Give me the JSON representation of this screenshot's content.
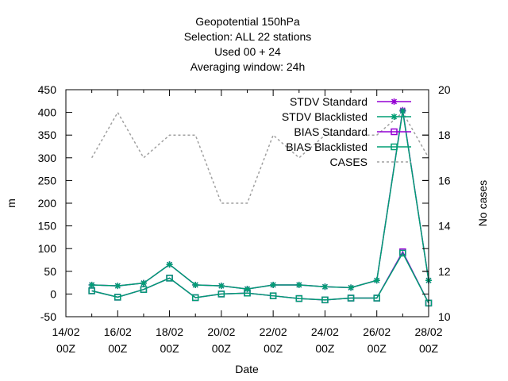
{
  "chart_data": {
    "type": "line",
    "title_lines": [
      "Geopotential 150hPa",
      "Selection: ALL      22 stations",
      "Used  00  + 24",
      "Averaging window: 24h"
    ],
    "xlabel": "Date",
    "ylabel": "m",
    "y2label": "No cases",
    "x_ticks": [
      {
        "line1": "14/02",
        "line2": "00Z"
      },
      {
        "line1": "16/02",
        "line2": "00Z"
      },
      {
        "line1": "18/02",
        "line2": "00Z"
      },
      {
        "line1": "20/02",
        "line2": "00Z"
      },
      {
        "line1": "22/02",
        "line2": "00Z"
      },
      {
        "line1": "24/02",
        "line2": "00Z"
      },
      {
        "line1": "26/02",
        "line2": "00Z"
      },
      {
        "line1": "28/02",
        "line2": "00Z"
      }
    ],
    "xlim": [
      "2024-02-14",
      "2024-02-28"
    ],
    "ylim": [
      -50,
      450
    ],
    "y_ticks": [
      "-50",
      "0",
      "50",
      "100",
      "150",
      "200",
      "250",
      "300",
      "350",
      "400",
      "450"
    ],
    "y2lim": [
      10,
      20
    ],
    "y2_ticks": [
      "10",
      "12",
      "14",
      "16",
      "18",
      "20"
    ],
    "grid": false,
    "legend_position": "top-right",
    "colors": {
      "stdv_standard": "#9400d3",
      "stdv_blacklisted": "#009e73",
      "bias_standard": "#9400d3",
      "bias_blacklisted": "#009e73",
      "cases": "#a0a0a0"
    },
    "x": [
      "2024-02-15",
      "2024-02-16",
      "2024-02-17",
      "2024-02-18",
      "2024-02-19",
      "2024-02-20",
      "2024-02-21",
      "2024-02-22",
      "2024-02-23",
      "2024-02-24",
      "2024-02-25",
      "2024-02-26",
      "2024-02-27",
      "2024-02-28"
    ],
    "series": [
      {
        "name": "STDV Standard",
        "key": "stdv_standard",
        "axis": "y",
        "marker": "star",
        "dash": false,
        "values": [
          20,
          18,
          24,
          65,
          20,
          18,
          11,
          20,
          20,
          16,
          14,
          30,
          405,
          30
        ]
      },
      {
        "name": "STDV Blacklisted",
        "key": "stdv_blacklisted",
        "axis": "y",
        "marker": "star",
        "dash": false,
        "values": [
          20,
          18,
          24,
          65,
          20,
          18,
          11,
          20,
          20,
          16,
          14,
          30,
          403,
          30
        ]
      },
      {
        "name": "BIAS Standard",
        "key": "bias_standard",
        "axis": "y",
        "marker": "square",
        "dash": false,
        "values": [
          7,
          -7,
          10,
          35,
          -8,
          0,
          2,
          -4,
          -10,
          -13,
          -9,
          -9,
          93,
          -20
        ]
      },
      {
        "name": "BIAS Blacklisted",
        "key": "bias_blacklisted",
        "axis": "y",
        "marker": "square",
        "dash": false,
        "values": [
          7,
          -7,
          10,
          35,
          -8,
          0,
          2,
          -4,
          -10,
          -13,
          -9,
          -9,
          90,
          -20
        ]
      },
      {
        "name": "CASES",
        "key": "cases",
        "axis": "y2",
        "marker": "none",
        "dash": true,
        "values": [
          17,
          19,
          17,
          18,
          18,
          15,
          15,
          18,
          17,
          18,
          18,
          18,
          19,
          17
        ]
      }
    ]
  }
}
